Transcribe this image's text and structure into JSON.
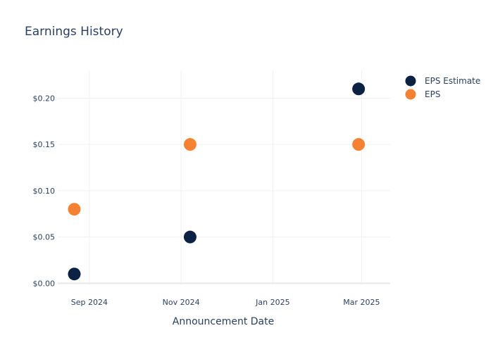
{
  "chart_data": {
    "type": "scatter",
    "title": "Earnings History",
    "xlabel": "Announcement Date",
    "ylabel": "",
    "x_tick_labels": [
      "Sep 2024",
      "Nov 2024",
      "Jan 2025",
      "Mar 2025"
    ],
    "x_ticks": [
      "2024-09-01",
      "2024-11-01",
      "2025-01-01",
      "2025-03-01"
    ],
    "xlim": [
      "2024-08-11",
      "2025-03-20"
    ],
    "y_tick_labels": [
      "$0.00",
      "$0.05",
      "$0.10",
      "$0.15",
      "$0.20"
    ],
    "y_ticks": [
      0,
      0.05,
      0.1,
      0.15,
      0.2
    ],
    "ylim": [
      -0.002,
      0.23
    ],
    "grid": true,
    "legend_position": "top-right",
    "series": [
      {
        "name": "EPS Estimate",
        "color": "#0b2244",
        "points": [
          {
            "x": "2024-08-22",
            "y": 0.01
          },
          {
            "x": "2024-11-07",
            "y": 0.05
          },
          {
            "x": "2025-02-27",
            "y": 0.21
          }
        ]
      },
      {
        "name": "EPS",
        "color": "#f58232",
        "points": [
          {
            "x": "2024-08-22",
            "y": 0.08
          },
          {
            "x": "2024-11-07",
            "y": 0.15
          },
          {
            "x": "2025-02-27",
            "y": 0.15
          }
        ]
      }
    ]
  }
}
